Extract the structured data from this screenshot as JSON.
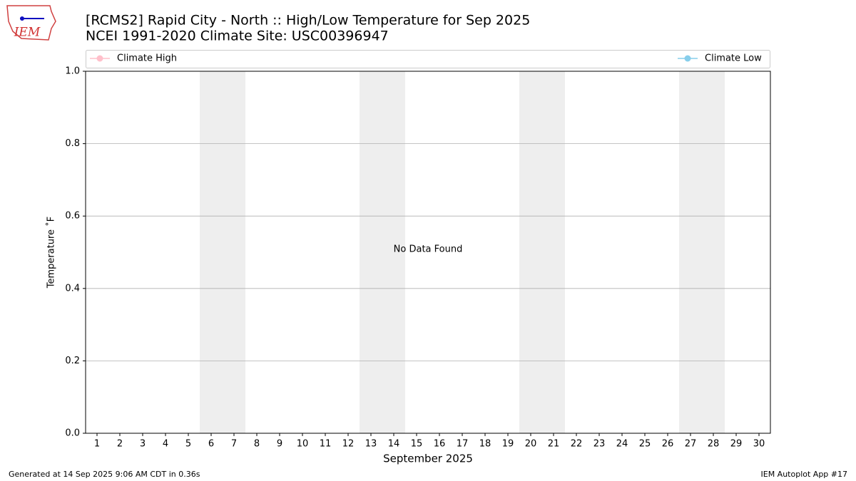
{
  "logo_text": "IEM",
  "footer_left": "Generated at 14 Sep 2025 9:06 AM CDT in 0.36s",
  "footer_right": "IEM Autoplot App #17",
  "chart_data": {
    "type": "line",
    "title": "[RCMS2] Rapid City - North :: High/Low Temperature for Sep 2025",
    "subtitle": "NCEI 1991-2020 Climate Site: USC00396947",
    "x_label": "September 2025",
    "y_label": "Temperature ˚F",
    "annotation": "No Data Found",
    "x": [
      1,
      2,
      3,
      4,
      5,
      6,
      7,
      8,
      9,
      10,
      11,
      12,
      13,
      14,
      15,
      16,
      17,
      18,
      19,
      20,
      21,
      22,
      23,
      24,
      25,
      26,
      27,
      28,
      29,
      30
    ],
    "xlim": [
      0.5,
      30.5
    ],
    "ylim": [
      0,
      1
    ],
    "yticks": [
      {
        "value": 0,
        "label": "0.0"
      },
      0.2,
      0.4,
      0.6,
      0.8,
      {
        "value": 1,
        "label": "1.0"
      }
    ],
    "grid": true,
    "shaded_x": [
      [
        5.5,
        7.5
      ],
      [
        12.5,
        14.5
      ],
      [
        19.5,
        21.5
      ],
      [
        26.5,
        28.5
      ]
    ],
    "shade_color": "#eeeeee",
    "series": [
      {
        "name": "Climate High",
        "color": "pink",
        "values": [
          null,
          null,
          null,
          null,
          null,
          null,
          null,
          null,
          null,
          null,
          null,
          null,
          null,
          null,
          null,
          null,
          null,
          null,
          null,
          null,
          null,
          null,
          null,
          null,
          null,
          null,
          null,
          null,
          null,
          null
        ]
      },
      {
        "name": "Climate Low",
        "color": "skyblue",
        "values": [
          null,
          null,
          null,
          null,
          null,
          null,
          null,
          null,
          null,
          null,
          null,
          null,
          null,
          null,
          null,
          null,
          null,
          null,
          null,
          null,
          null,
          null,
          null,
          null,
          null,
          null,
          null,
          null,
          null,
          null
        ]
      }
    ]
  }
}
